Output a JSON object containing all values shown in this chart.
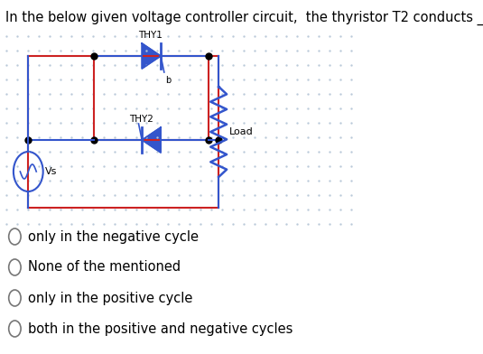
{
  "title": "In the below given voltage controller circuit,  the thyristor T2 conducts ___",
  "title_fontsize": 10.5,
  "background_color": "#ffffff",
  "options": [
    "only in the negative cycle",
    "None of the mentioned",
    "only in the positive cycle",
    "both in the positive and negative cycles"
  ],
  "option_fontsize": 10.5,
  "circuit_color": "#cc2222",
  "thyristor_color": "#3355cc",
  "wire_color": "#3355cc",
  "resistor_color": "#3355cc",
  "dot_grid_color": "#b8c8d8",
  "thy1_label": "THY1",
  "thy2_label": "THY2",
  "load_label": "Load",
  "vs_label": "Vs"
}
